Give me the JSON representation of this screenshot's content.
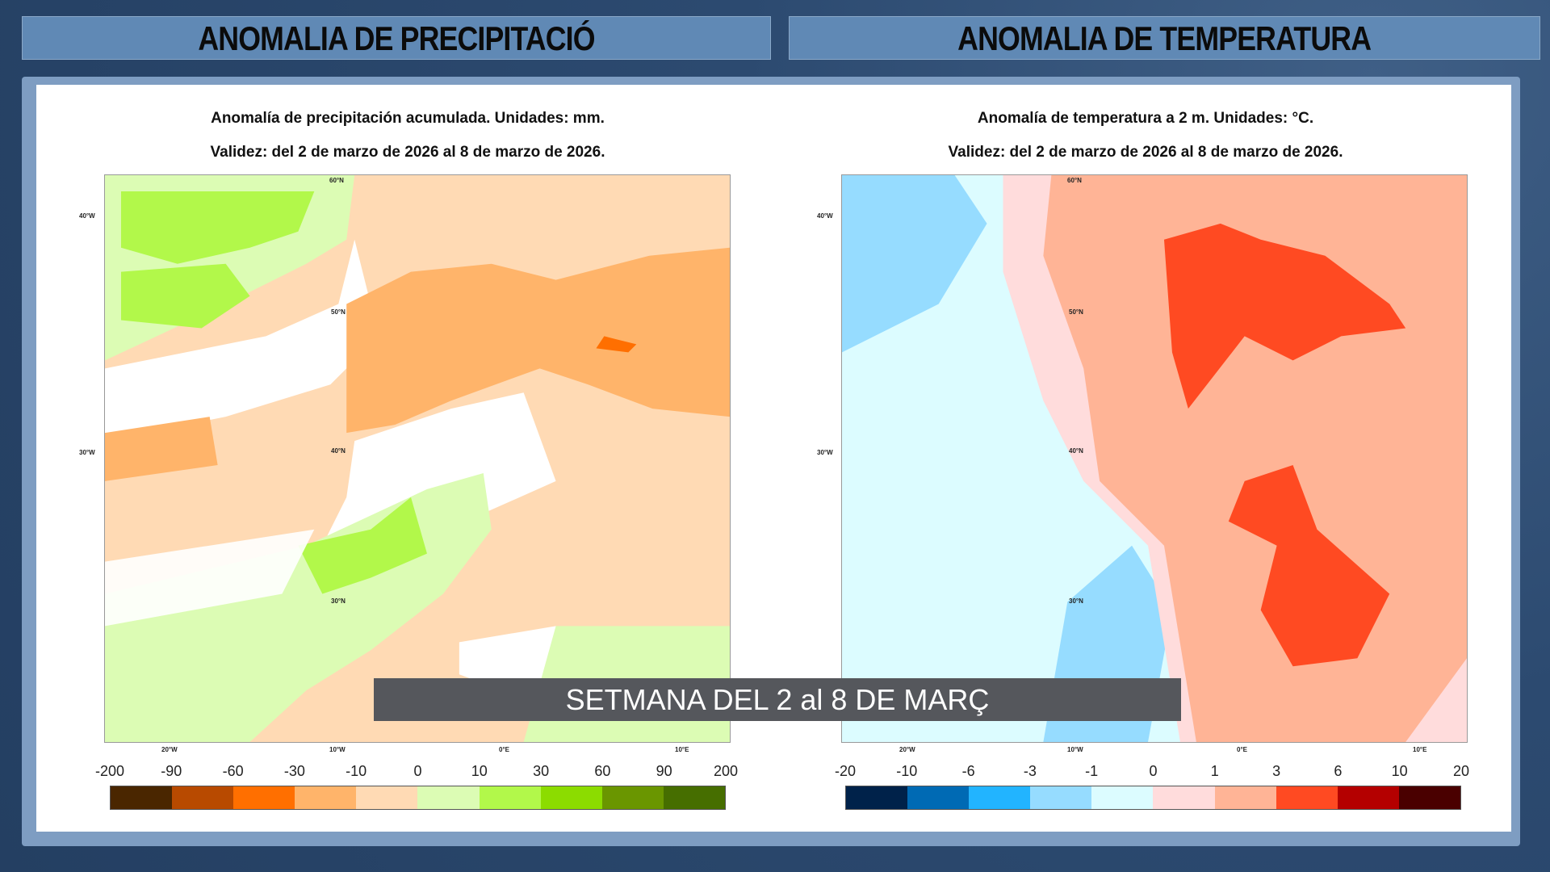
{
  "headers": {
    "left": "ANOMALIA DE PRECIPITACIÓ",
    "right": "ANOMALIA DE TEMPERATURA"
  },
  "precip": {
    "title": "Anomalía de precipitación acumulada. Unidades: mm.",
    "validity": "Validez: del 2 de marzo de 2026 al 8 de marzo de 2026.",
    "legend_labels": [
      "-200",
      "-90",
      "-60",
      "-30",
      "-10",
      "0",
      "10",
      "30",
      "60",
      "90",
      "200"
    ],
    "legend_colors": [
      "#4a2600",
      "#b84a00",
      "#ff6f00",
      "#ffb46a",
      "#ffdab4",
      "#dcfcb4",
      "#b2f84a",
      "#8cdc00",
      "#6a9600",
      "#466e00"
    ]
  },
  "temp": {
    "title": "Anomalía de temperatura a 2 m. Unidades: °C.",
    "validity": "Validez: del 2 de marzo de 2026 al 8 de marzo de 2026.",
    "legend_labels": [
      "-20",
      "-10",
      "-6",
      "-3",
      "-1",
      "0",
      "1",
      "3",
      "6",
      "10",
      "20"
    ],
    "legend_colors": [
      "#00224a",
      "#006ab4",
      "#22b4ff",
      "#96dcff",
      "#dcfcff",
      "#ffdcdc",
      "#ffb496",
      "#ff4a22",
      "#b40000",
      "#4a0000"
    ]
  },
  "axis": {
    "lat": [
      "60°N",
      "50°N",
      "40°N",
      "30°N"
    ],
    "lon": [
      "20°W",
      "10°W",
      "0°E",
      "10°E"
    ],
    "lon_left": [
      "40°W",
      "30°W"
    ]
  },
  "banner": "SETMANA DEL 2 al 8 DE MARÇ"
}
